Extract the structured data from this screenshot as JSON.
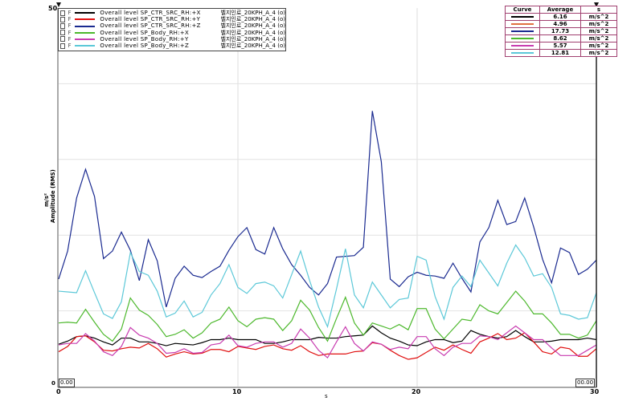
{
  "chart_data": {
    "type": "line",
    "xlabel": "s",
    "ylabel": "Amplitude (RMS)",
    "yunit": "m/s²",
    "xlim": [
      0,
      30
    ],
    "ylim": [
      0,
      50
    ],
    "xticks": [
      "0",
      "10",
      "20",
      "30"
    ],
    "yticks": [
      "0",
      "50"
    ],
    "grid": true,
    "legend_position": "top-left",
    "x_step": 0.5,
    "cursor_readouts": [
      "0.00",
      "00.00"
    ],
    "series": [
      {
        "name": "Overall level SP_CTR_SRC_RH:+X",
        "suffix": "벨지인로_20KPH_A_4 (o)",
        "flag": "F",
        "color": "#000000",
        "values": [
          5.6,
          6.0,
          6.6,
          6.7,
          6.4,
          5.9,
          5.5,
          6.4,
          6.4,
          5.9,
          5.9,
          5.7,
          5.4,
          5.7,
          5.6,
          5.5,
          5.8,
          6.2,
          6.2,
          6.4,
          6.2,
          6.2,
          6.2,
          5.7,
          5.7,
          5.9,
          6.2,
          6.2,
          6.2,
          6.5,
          6.4,
          6.4,
          6.6,
          6.7,
          6.8,
          8.0,
          7.1,
          6.4,
          6.0,
          5.5,
          5.4,
          5.9,
          6.2,
          6.2,
          5.8,
          6.0,
          7.4,
          6.9,
          6.6,
          6.4,
          6.6,
          7.4,
          6.6,
          5.9,
          5.9,
          6.0,
          6.2,
          6.2,
          6.2,
          6.4,
          6.2
        ]
      },
      {
        "name": "Overall level SP_CTR_SRC_RH:+Y",
        "suffix": "벨지인로_20KPH_A_4 (o)",
        "flag": "F",
        "color": "#e01010",
        "values": [
          4.6,
          5.3,
          6.6,
          6.7,
          5.9,
          4.8,
          4.7,
          5.0,
          5.2,
          5.1,
          5.7,
          5.0,
          3.9,
          4.3,
          4.6,
          4.3,
          4.4,
          4.9,
          4.9,
          4.6,
          5.3,
          5.1,
          4.9,
          5.3,
          5.5,
          5.0,
          4.8,
          5.4,
          4.6,
          4.1,
          4.3,
          4.3,
          4.3,
          4.6,
          4.7,
          5.8,
          5.6,
          4.8,
          4.1,
          3.6,
          3.8,
          4.5,
          5.2,
          4.8,
          5.5,
          4.9,
          4.4,
          5.9,
          6.4,
          7.0,
          6.2,
          6.4,
          7.1,
          5.9,
          4.6,
          4.3,
          5.2,
          5.0,
          4.0,
          4.0,
          5.0
        ]
      },
      {
        "name": "Overall level SP_CTR_SRC_RH:+Z",
        "suffix": "벨지인로_20KPH_A_4 (o)",
        "flag": "F",
        "color": "#1a2a90",
        "values": [
          14.2,
          17.9,
          24.9,
          28.7,
          25.1,
          16.9,
          17.9,
          20.4,
          18.0,
          14.0,
          19.4,
          16.6,
          10.5,
          14.3,
          15.9,
          14.7,
          14.4,
          15.2,
          15.9,
          18.0,
          19.8,
          21.0,
          18.1,
          17.5,
          21.0,
          18.2,
          16.1,
          14.7,
          13.1,
          12.1,
          13.6,
          17.1,
          17.2,
          17.3,
          18.4,
          36.4,
          29.7,
          14.2,
          13.2,
          14.5,
          15.1,
          14.7,
          14.6,
          14.3,
          16.3,
          14.3,
          12.5,
          19.1,
          21.0,
          24.6,
          21.4,
          21.8,
          24.9,
          21.1,
          16.8,
          13.7,
          18.3,
          17.7,
          14.8,
          15.5,
          16.7
        ]
      },
      {
        "name": "Overall level SP_Body_RH:+X",
        "suffix": "벨지인로_20KPH_A_4 (o)",
        "flag": "F",
        "color": "#4cb82c",
        "values": [
          8.4,
          8.5,
          8.4,
          10.2,
          8.5,
          6.9,
          6.0,
          7.6,
          11.7,
          10.1,
          9.4,
          8.2,
          6.6,
          6.9,
          7.5,
          6.4,
          7.1,
          8.4,
          8.9,
          10.5,
          8.7,
          7.9,
          8.9,
          9.1,
          8.9,
          7.4,
          8.7,
          11.4,
          10.1,
          7.8,
          6.0,
          9.0,
          11.8,
          8.4,
          6.8,
          8.4,
          8.0,
          7.6,
          8.2,
          7.5,
          10.3,
          10.3,
          7.6,
          6.3,
          7.6,
          8.9,
          8.7,
          10.8,
          10.0,
          9.6,
          11.1,
          12.6,
          11.3,
          9.6,
          9.6,
          8.4,
          6.9,
          6.9,
          6.4,
          6.8,
          8.7
        ]
      },
      {
        "name": "Overall level SP_Body_RH:+Y",
        "suffix": "벨지인로_20KPH_A_4 (o)",
        "flag": "F",
        "color": "#c83cb0",
        "values": [
          5.5,
          5.7,
          5.7,
          7.0,
          6.0,
          4.6,
          4.1,
          5.3,
          7.8,
          6.8,
          6.4,
          5.7,
          4.4,
          4.5,
          5.0,
          4.4,
          4.5,
          5.5,
          5.7,
          6.8,
          5.4,
          5.2,
          5.7,
          5.9,
          5.9,
          5.2,
          5.7,
          7.6,
          6.4,
          4.8,
          3.8,
          5.9,
          7.9,
          5.7,
          4.7,
          5.9,
          5.6,
          4.9,
          5.2,
          5.0,
          6.6,
          6.6,
          5.0,
          4.1,
          5.2,
          5.7,
          5.7,
          6.7,
          6.6,
          6.2,
          7.1,
          8.0,
          7.1,
          6.2,
          6.2,
          5.1,
          4.1,
          4.1,
          4.1,
          4.8,
          5.5
        ]
      },
      {
        "name": "Overall level SP_Body_RH:+Z",
        "suffix": "벨지인로_20KPH_A_4 (o)",
        "flag": "F",
        "color": "#5cc8d8",
        "values": [
          12.6,
          12.5,
          12.4,
          15.3,
          12.4,
          9.6,
          9.0,
          11.2,
          17.7,
          15.2,
          14.7,
          12.6,
          9.2,
          9.7,
          11.3,
          9.2,
          9.8,
          12.1,
          13.6,
          16.1,
          13.1,
          12.3,
          13.6,
          13.8,
          13.3,
          11.7,
          14.8,
          17.9,
          14.0,
          10.5,
          7.9,
          12.9,
          18.2,
          12.1,
          10.4,
          13.8,
          12.1,
          10.4,
          11.5,
          11.7,
          17.2,
          16.7,
          11.9,
          8.9,
          13.1,
          14.6,
          13.2,
          16.7,
          15.0,
          13.3,
          16.3,
          18.7,
          17.0,
          14.6,
          14.9,
          13.1,
          9.6,
          9.4,
          8.9,
          9.1,
          12.4
        ]
      }
    ],
    "stats_table": {
      "headers": [
        "Curve",
        "Average",
        "s"
      ],
      "rows": [
        {
          "average": "6.16",
          "unit": "m/s^2",
          "color": "#000000"
        },
        {
          "average": "4.96",
          "unit": "m/s^2",
          "color": "#e07040"
        },
        {
          "average": "17.73",
          "unit": "m/s^2",
          "color": "#1a2a90"
        },
        {
          "average": "8.62",
          "unit": "m/s^2",
          "color": "#4cb82c"
        },
        {
          "average": "5.57",
          "unit": "m/s^2",
          "color": "#c83cb0"
        },
        {
          "average": "12.81",
          "unit": "m/s^2",
          "color": "#5cc8d8"
        }
      ]
    }
  }
}
